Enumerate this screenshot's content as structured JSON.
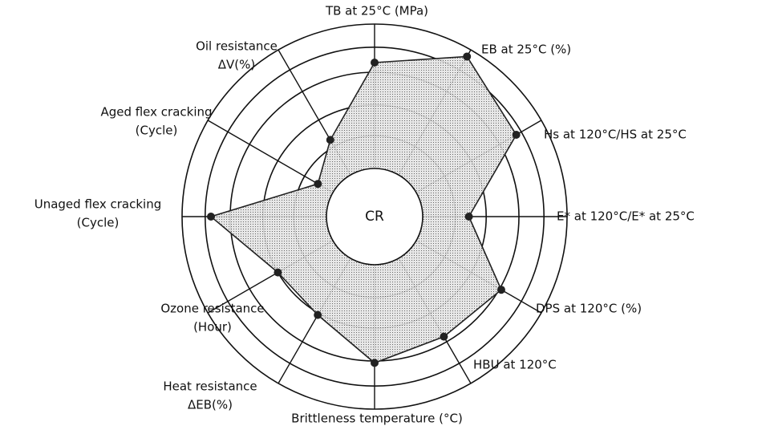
{
  "chart_data": {
    "type": "radar",
    "center_label": "CR",
    "categories": [
      [
        "TB at 25°C (MPa)"
      ],
      [
        "EB at 25°C (%)"
      ],
      [
        "Hs at 120°C/HS at 25°C"
      ],
      [
        "E* at 120°C/E* at 25°C"
      ],
      [
        "DPS at 120°C (%)"
      ],
      [
        "HBU at 120°C"
      ],
      [
        "Brittleness temperature (°C)"
      ],
      [
        "Heat resistance",
        "ΔEB(%)"
      ],
      [
        "Ozone resistance",
        "(Hour)"
      ],
      [
        "Unaged flex cracking",
        "(Cycle)"
      ],
      [
        "Aged flex cracking",
        "(Cycle)"
      ],
      [
        "Oil resistance",
        "ΔV(%)"
      ]
    ],
    "series": [
      {
        "color": "#222222",
        "values": [
          80,
          96,
          85,
          49,
          76,
          72,
          76,
          59,
          58,
          85,
          34,
          46
        ]
      }
    ],
    "rlim": [
      0,
      100
    ],
    "rticks": [
      25,
      42,
      58,
      75,
      88,
      100
    ]
  }
}
